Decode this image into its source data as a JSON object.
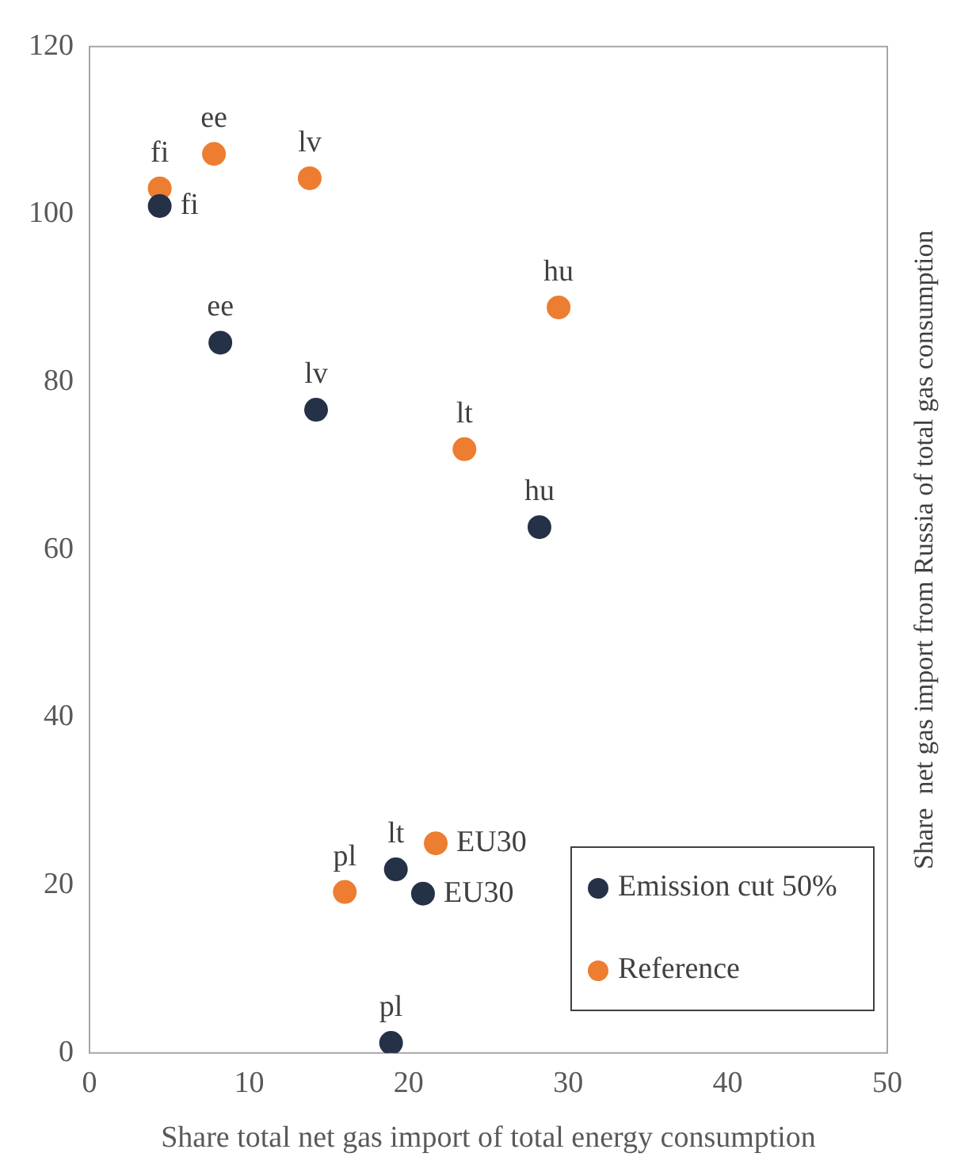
{
  "chart_data": {
    "type": "scatter",
    "xlabel": "Share total net gas import of total energy consumption",
    "ylabel": "Share  net gas import from Russia of total gas consumption",
    "series": [
      {
        "name": "Emission cut 50%",
        "color": "#253146",
        "x": [
          4.4,
          8.2,
          14.2,
          28.2,
          19.2,
          20.9,
          18.9
        ],
        "values": [
          101,
          84.7,
          76.7,
          62.7,
          21.9,
          19,
          1.2
        ]
      },
      {
        "name": "Reference",
        "color": "#ed7d31",
        "x": [
          4.4,
          7.8,
          13.8,
          29.4,
          23.5,
          21.7,
          16
        ],
        "values": [
          103.1,
          107.2,
          104.3,
          88.9,
          72,
          25,
          19.2
        ]
      }
    ],
    "annotations": [
      {
        "text": "fi",
        "x": 4.4,
        "y": 101
      },
      {
        "text": "ee",
        "x": 8.2,
        "y": 84.7
      },
      {
        "text": "lv",
        "x": 14.2,
        "y": 76.7
      },
      {
        "text": "hu",
        "x": 28.2,
        "y": 62.7
      },
      {
        "text": "lt",
        "x": 19.2,
        "y": 21.9
      },
      {
        "text": "EU30",
        "x": 20.9,
        "y": 19
      },
      {
        "text": "pl",
        "x": 18.9,
        "y": 1.2
      },
      {
        "text": "fi",
        "x": 4.4,
        "y": 103.1
      },
      {
        "text": "ee",
        "x": 7.8,
        "y": 107.2
      },
      {
        "text": "lv",
        "x": 13.8,
        "y": 104.3
      },
      {
        "text": "hu",
        "x": 29.4,
        "y": 88.9
      },
      {
        "text": "lt",
        "x": 23.5,
        "y": 72
      },
      {
        "text": "EU30",
        "x": 21.7,
        "y": 25
      },
      {
        "text": "pl",
        "x": 16,
        "y": 19.2
      }
    ],
    "xlim": [
      0,
      50
    ],
    "xticks": [
      0,
      10,
      20,
      30,
      40,
      50
    ],
    "ylim": [
      0,
      120
    ],
    "yticks": [
      0,
      20,
      40,
      60,
      80,
      100,
      120
    ],
    "grid": false,
    "legend": "bottom right",
    "marker": "circle"
  }
}
